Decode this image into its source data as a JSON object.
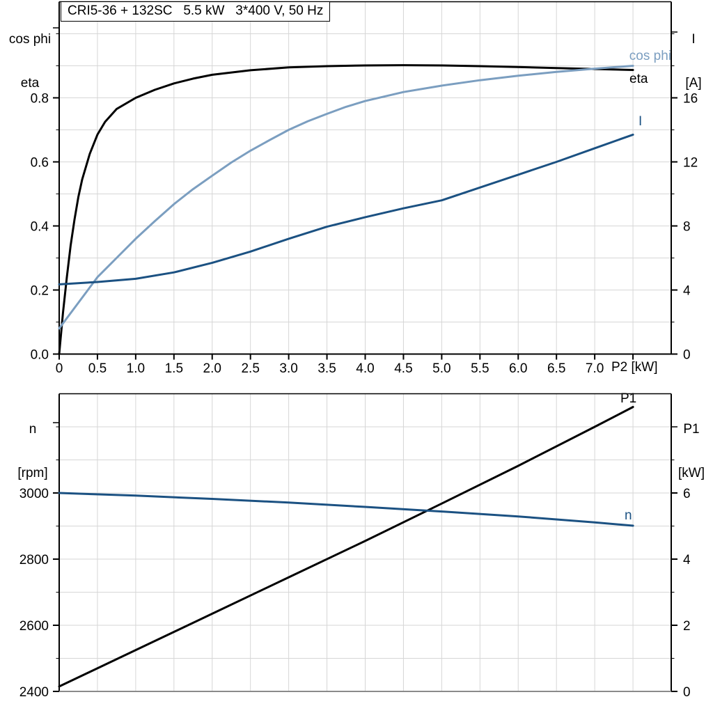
{
  "title": "CRI5-36 + 132SC   5.5 kW   3*400 V, 50 Hz",
  "colors": {
    "eta": "#000000",
    "cos_phi": "#7B9EC0",
    "current": "#1B5182",
    "speed": "#1B5182",
    "power": "#000000",
    "grid": "#d6d6d6",
    "axis": "#000000",
    "bottom_frame_gray": "#8a8a8a"
  },
  "chart_data": [
    {
      "type": "line",
      "name": "motor-electrical-curves",
      "title": "CRI5-36 + 132SC   5.5 kW   3*400 V, 50 Hz",
      "x_axis": {
        "label": "P2 [kW]",
        "range": [
          0,
          8
        ],
        "grid_step": 0.5,
        "tick_values": [
          0,
          0.5,
          1.0,
          1.5,
          2.0,
          2.5,
          3.0,
          3.5,
          4.0,
          4.5,
          5.0,
          5.5,
          6.0,
          6.5,
          7.0,
          7.5
        ],
        "tick_labels": [
          "0",
          "0.5",
          "1.0",
          "1.5",
          "2.0",
          "2.5",
          "3.0",
          "3.5",
          "4.0",
          "4.5",
          "5.0",
          "5.5",
          "6.0",
          "6.5",
          "7.0",
          ""
        ]
      },
      "left_axis": {
        "label_line1": "cos phi",
        "label_line2": "eta",
        "range": [
          0,
          1.1
        ],
        "minor_step": 0.1,
        "tick_values": [
          0,
          0.2,
          0.4,
          0.6,
          0.8
        ],
        "tick_labels": [
          "0.0",
          "0.2",
          "0.4",
          "0.6",
          "0.8"
        ]
      },
      "right_axis": {
        "label_line1": "I",
        "label_line2": "[A]",
        "range": [
          0,
          22
        ],
        "minor_step": 2,
        "tick_values": [
          0,
          4,
          8,
          12,
          16
        ],
        "tick_labels": [
          "0",
          "4",
          "8",
          "12",
          "16"
        ]
      },
      "series": [
        {
          "name": "eta",
          "label": "eta",
          "color": "#000000",
          "axis": "left",
          "points": [
            [
              0,
              0
            ],
            [
              0.05,
              0.13
            ],
            [
              0.1,
              0.24
            ],
            [
              0.15,
              0.34
            ],
            [
              0.2,
              0.42
            ],
            [
              0.25,
              0.49
            ],
            [
              0.3,
              0.545
            ],
            [
              0.4,
              0.625
            ],
            [
              0.5,
              0.685
            ],
            [
              0.6,
              0.725
            ],
            [
              0.75,
              0.765
            ],
            [
              1.0,
              0.8
            ],
            [
              1.25,
              0.825
            ],
            [
              1.5,
              0.845
            ],
            [
              1.75,
              0.86
            ],
            [
              2.0,
              0.872
            ],
            [
              2.5,
              0.886
            ],
            [
              3.0,
              0.895
            ],
            [
              3.5,
              0.899
            ],
            [
              4.0,
              0.901
            ],
            [
              4.5,
              0.902
            ],
            [
              5.0,
              0.901
            ],
            [
              5.5,
              0.899
            ],
            [
              6.0,
              0.896
            ],
            [
              6.5,
              0.893
            ],
            [
              7.0,
              0.89
            ],
            [
              7.5,
              0.887
            ]
          ]
        },
        {
          "name": "cos-phi",
          "label": "cos phi",
          "color": "#7B9EC0",
          "axis": "left",
          "points": [
            [
              0,
              0.08
            ],
            [
              0.25,
              0.16
            ],
            [
              0.5,
              0.24
            ],
            [
              0.75,
              0.3
            ],
            [
              1.0,
              0.36
            ],
            [
              1.25,
              0.415
            ],
            [
              1.5,
              0.468
            ],
            [
              1.75,
              0.515
            ],
            [
              2.0,
              0.557
            ],
            [
              2.25,
              0.598
            ],
            [
              2.5,
              0.635
            ],
            [
              2.75,
              0.668
            ],
            [
              3.0,
              0.7
            ],
            [
              3.25,
              0.727
            ],
            [
              3.5,
              0.75
            ],
            [
              3.75,
              0.772
            ],
            [
              4.0,
              0.79
            ],
            [
              4.5,
              0.818
            ],
            [
              5.0,
              0.838
            ],
            [
              5.5,
              0.855
            ],
            [
              6.0,
              0.869
            ],
            [
              6.5,
              0.881
            ],
            [
              7.0,
              0.891
            ],
            [
              7.5,
              0.9
            ]
          ]
        },
        {
          "name": "current",
          "label": "I",
          "color": "#1B5182",
          "axis": "right",
          "points": [
            [
              0,
              4.35
            ],
            [
              0.5,
              4.5
            ],
            [
              1.0,
              4.7
            ],
            [
              1.5,
              5.1
            ],
            [
              2.0,
              5.7
            ],
            [
              2.5,
              6.4
            ],
            [
              3.0,
              7.2
            ],
            [
              3.5,
              7.95
            ],
            [
              4.0,
              8.55
            ],
            [
              4.5,
              9.1
            ],
            [
              5.0,
              9.6
            ],
            [
              5.5,
              10.4
            ],
            [
              6.0,
              11.2
            ],
            [
              6.5,
              12.0
            ],
            [
              7.0,
              12.85
            ],
            [
              7.5,
              13.7
            ]
          ]
        }
      ]
    },
    {
      "type": "line",
      "name": "speed-power-curves",
      "title": "",
      "x_axis": {
        "label": "",
        "range": [
          0,
          8
        ],
        "grid_step": 0.5,
        "tick_values": [],
        "tick_labels": []
      },
      "left_axis": {
        "label_line1": "n",
        "label_line2": "[rpm]",
        "range": [
          2400,
          3300
        ],
        "minor_step": 100,
        "tick_values": [
          2400,
          2600,
          2800,
          3000
        ],
        "tick_labels": [
          "2400",
          "2600",
          "2800",
          "3000"
        ]
      },
      "right_axis": {
        "label_line1": "P1",
        "label_line2": "[kW]",
        "range": [
          0,
          9
        ],
        "minor_step": 1,
        "tick_values": [
          0,
          2,
          4,
          6
        ],
        "tick_labels": [
          "0",
          "2",
          "4",
          "6"
        ]
      },
      "series": [
        {
          "name": "power-p1",
          "label": "P1",
          "color": "#000000",
          "axis": "right",
          "points": [
            [
              0,
              0.15
            ],
            [
              1,
              1.25
            ],
            [
              2,
              2.35
            ],
            [
              3,
              3.45
            ],
            [
              4,
              4.55
            ],
            [
              5,
              5.68
            ],
            [
              6,
              6.82
            ],
            [
              7,
              8.0
            ],
            [
              7.5,
              8.6
            ]
          ]
        },
        {
          "name": "speed-n",
          "label": "n",
          "color": "#1B5182",
          "axis": "left",
          "points": [
            [
              0,
              3000
            ],
            [
              1,
              2992
            ],
            [
              2,
              2982
            ],
            [
              3,
              2971
            ],
            [
              4,
              2958
            ],
            [
              5,
              2944
            ],
            [
              6,
              2929
            ],
            [
              7,
              2911
            ],
            [
              7.5,
              2901
            ]
          ]
        }
      ]
    }
  ]
}
